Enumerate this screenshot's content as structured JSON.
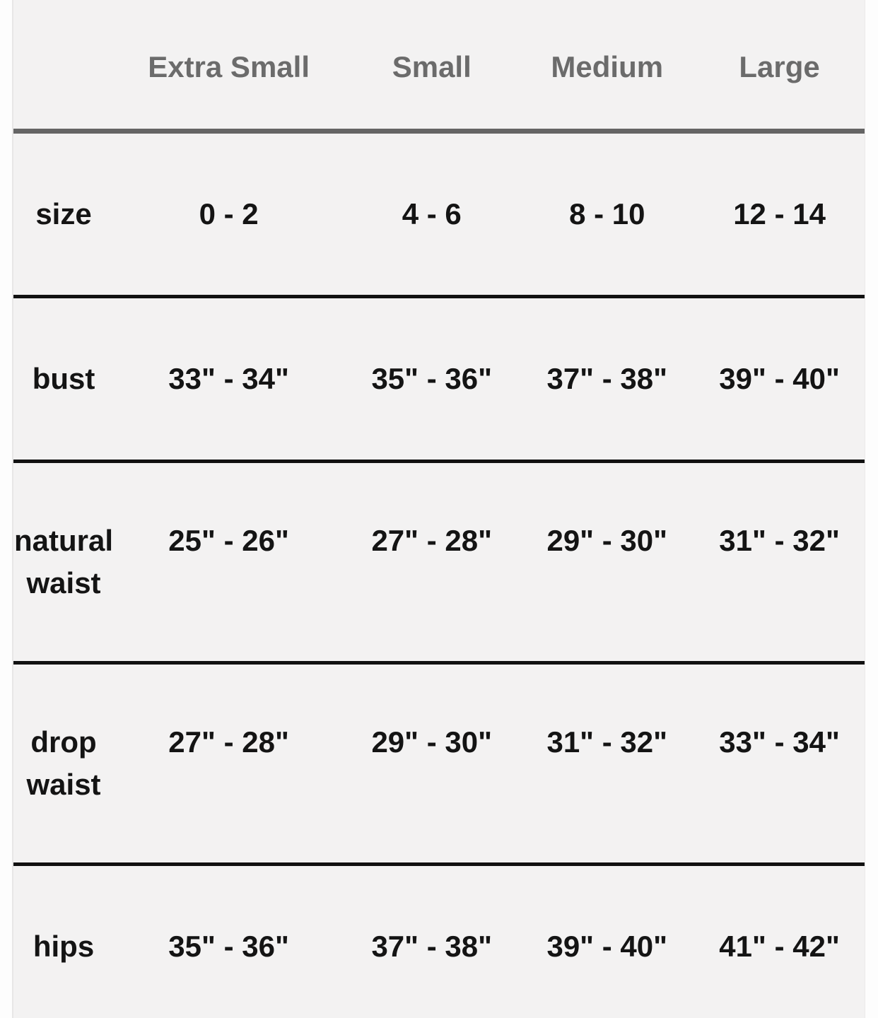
{
  "size_chart": {
    "column_headers": [
      "Extra Small",
      "Small",
      "Medium",
      "Large"
    ],
    "rows": [
      {
        "label": "size",
        "values": [
          "0 - 2",
          "4 - 6",
          "8 - 10",
          "12 - 14"
        ]
      },
      {
        "label": "bust",
        "values": [
          "33\" - 34\"",
          "35\" - 36\"",
          "37\" - 38\"",
          "39\" - 40\""
        ]
      },
      {
        "label": "natural waist",
        "values": [
          "25\" - 26\"",
          "27\" - 28\"",
          "29\" - 30\"",
          "31\" - 32\""
        ]
      },
      {
        "label": "drop waist",
        "values": [
          "27\" - 28\"",
          "29\" - 30\"",
          "31\" - 32\"",
          "33\" - 34\""
        ]
      },
      {
        "label": "hips",
        "values": [
          "35\" - 36\"",
          "37\" - 38\"",
          "39\" - 40\"",
          "41\" - 42\""
        ]
      }
    ],
    "colors": {
      "page_background": "#fdfdfd",
      "card_background": "#f3f2f2",
      "header_text": "#6b6b6b",
      "header_divider": "#656565",
      "row_divider": "#111111",
      "body_text": "#141414"
    }
  }
}
